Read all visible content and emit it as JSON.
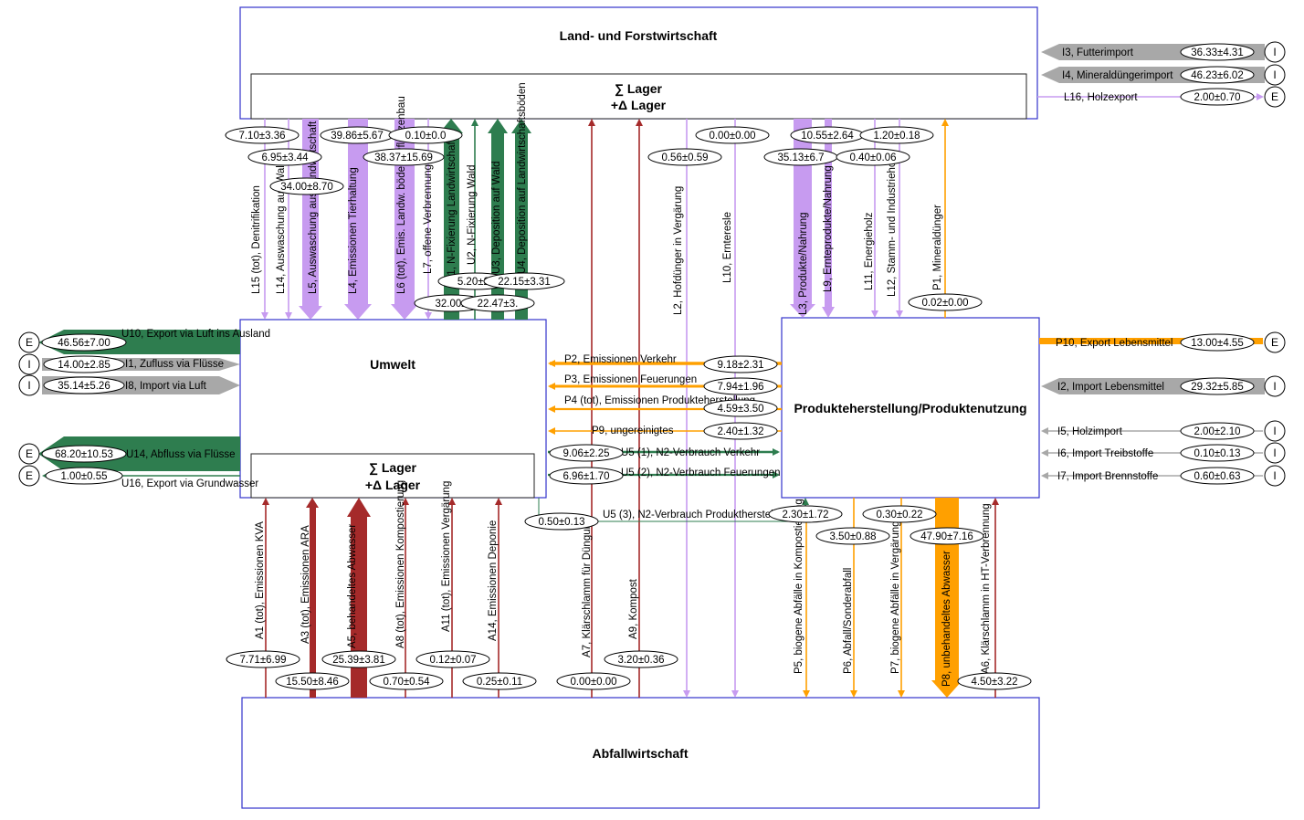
{
  "processes": {
    "land": "Land- und Forstwirtschaft",
    "umwelt": "Umwelt",
    "produkte": "Produkteherstellung/Produktenutzung",
    "abfall": "Abfallwirtschaft",
    "lager_sum": "∑ Lager",
    "lager_delta": "+Δ Lager"
  },
  "colors": {
    "green": "#2e7d4f",
    "purple": "#c79bf0",
    "red": "#a52a2a",
    "orange": "#ffa000",
    "grey": "#a8a8a8",
    "box_border": "#3333cc"
  },
  "markers": {
    "import": "I",
    "export": "E"
  },
  "flows": [
    {
      "id": "L15",
      "label": "L15 (tot), Denitrifikation",
      "value": "7.10±3.36",
      "color": "purple",
      "kind": "thin"
    },
    {
      "id": "L14",
      "label": "L14, Auswaschung aus Wald",
      "value": "6.95±3.44",
      "color": "purple",
      "kind": "thin"
    },
    {
      "id": "L5",
      "label": "L5, Auswaschung aus Landwirtschaft",
      "value": "34.00±8.70",
      "color": "purple",
      "kind": "thick"
    },
    {
      "id": "L4",
      "label": "L4, Emissionen Tierhaltung",
      "value": "39.86±5.67",
      "color": "purple",
      "kind": "thick"
    },
    {
      "id": "L6",
      "label": "L6 (tot), Emis. Landw. böden, Pflanzenbau",
      "value": "38.37±15.69",
      "color": "purple",
      "kind": "thick"
    },
    {
      "id": "L7",
      "label": "L7, offene Verbrennung",
      "value": "0.10±0.0",
      "color": "purple",
      "kind": "thin"
    },
    {
      "id": "U1",
      "label": "U1, N-Fixierung Landwirtschaft",
      "value": "32.00±",
      "color": "green",
      "kind": "thick"
    },
    {
      "id": "U2",
      "label": "U2, N-Fixierung Wald",
      "value": "5.20±2.",
      "color": "green",
      "kind": "thin"
    },
    {
      "id": "U3",
      "label": "U3, Deposition auf Wald",
      "value": "22.47±3.",
      "color": "green",
      "kind": "thick"
    },
    {
      "id": "U4",
      "label": "U4, Deposition auf Landwirtschaftsböden",
      "value": "22.15±3.31",
      "color": "green",
      "kind": "thick"
    },
    {
      "id": "L2",
      "label": "L2, Hofdünger in Vergärung",
      "value": "0.56±0.59",
      "color": "purple",
      "kind": "thin"
    },
    {
      "id": "L10",
      "label": "L10, Ernteresle",
      "value": "0.00±0.00",
      "color": "purple",
      "kind": "thin"
    },
    {
      "id": "L3",
      "label": "L3, Produkte/Nahrung",
      "value": "35.13±6.7",
      "color": "purple",
      "kind": "thick"
    },
    {
      "id": "L9",
      "label": "L9, Ernteprodukte/Nahrung",
      "value": "10.55±2.64",
      "color": "purple",
      "kind": "thick"
    },
    {
      "id": "L11",
      "label": "L11, Energieholz",
      "value": "1.20±0.18",
      "color": "purple",
      "kind": "thin"
    },
    {
      "id": "L12",
      "label": "L12, Stamm- und Industrieholz",
      "value": "0.40±0.06",
      "color": "purple",
      "kind": "thin"
    },
    {
      "id": "P1",
      "label": "P1, Mineraldünger",
      "value": "0.02±0.00",
      "color": "orange",
      "kind": "thin"
    },
    {
      "id": "I3",
      "label": "I3, Futterimport",
      "value": "36.33±4.31",
      "color": "grey",
      "kind": "import"
    },
    {
      "id": "I4",
      "label": "I4, Mineraldüngerimport",
      "value": "46.23±6.02",
      "color": "grey",
      "kind": "import"
    },
    {
      "id": "L16",
      "label": "L16, Holzexport",
      "value": "2.00±0.70",
      "color": "purple",
      "kind": "export"
    },
    {
      "id": "U10",
      "label": "U10, Export via Luft ins Ausland",
      "value": "46.56±7.00",
      "color": "green",
      "kind": "export"
    },
    {
      "id": "I1",
      "label": "I1, Zufluss via Flüsse",
      "value": "14.00±2.85",
      "color": "grey",
      "kind": "import"
    },
    {
      "id": "I8",
      "label": "I8, Import via Luft",
      "value": "35.14±5.26",
      "color": "grey",
      "kind": "import"
    },
    {
      "id": "U14",
      "label": "U14, Abfluss via Flüsse",
      "value": "68.20±10.53",
      "color": "green",
      "kind": "export"
    },
    {
      "id": "U16",
      "label": "U16, Export via Grundwasser",
      "value": "1.00±0.55",
      "color": "green",
      "kind": "export"
    },
    {
      "id": "P2",
      "label": "P2, Emissionen Verkehr",
      "value": "9.18±2.31",
      "color": "orange",
      "kind": "thin"
    },
    {
      "id": "P3",
      "label": "P3, Emissionen Feuerungen",
      "value": "7.94±1.96",
      "color": "orange",
      "kind": "thin"
    },
    {
      "id": "P4",
      "label": "P4 (tot), Emissionen Produkteherstellung",
      "value": "4.59±3.50",
      "color": "orange",
      "kind": "thin"
    },
    {
      "id": "P9",
      "label": "P9, ungereinigtes",
      "value": "2.40±1.32",
      "color": "orange",
      "kind": "thin"
    },
    {
      "id": "U5a",
      "label": "U5 (1), N2-Verbrauch Verkehr",
      "value": "9.06±2.25",
      "color": "green",
      "kind": "thin"
    },
    {
      "id": "U5b",
      "label": "U5 (2), N2-Verbrauch Feuerungen",
      "value": "6.96±1.70",
      "color": "green",
      "kind": "thin"
    },
    {
      "id": "U5c",
      "label": "U5 (3), N2-Verbrauch Produktherstellung etc.",
      "value": "0.50±0.13",
      "color": "green",
      "kind": "thin"
    },
    {
      "id": "P10",
      "label": "P10, Export Lebensmittel",
      "value": "13.00±4.55",
      "color": "orange",
      "kind": "export"
    },
    {
      "id": "I2",
      "label": "I2, Import Lebensmittel",
      "value": "29.32±5.85",
      "color": "grey",
      "kind": "import"
    },
    {
      "id": "I5",
      "label": "I5, Holzimport",
      "value": "2.00±2.10",
      "color": "grey",
      "kind": "import"
    },
    {
      "id": "I6",
      "label": "I6, Import Treibstoffe",
      "value": "0.10±0.13",
      "color": "grey",
      "kind": "import"
    },
    {
      "id": "I7",
      "label": "I7, Import Brennstoffe",
      "value": "0.60±0.63",
      "color": "grey",
      "kind": "import"
    },
    {
      "id": "A1",
      "label": "A1 (tot), Emissionen KVA",
      "value": "7.71±6.99",
      "color": "red",
      "kind": "thin"
    },
    {
      "id": "A3",
      "label": "A3 (tot), Emissionen ARA",
      "value": "15.50±8.46",
      "color": "red",
      "kind": "thin"
    },
    {
      "id": "A5",
      "label": "A5, behandeltes Abwasser",
      "value": "25.39±3.81",
      "color": "red",
      "kind": "thick"
    },
    {
      "id": "A8",
      "label": "A8 (tot), Emissionen Kompostierung",
      "value": "0.70±0.54",
      "color": "red",
      "kind": "thin"
    },
    {
      "id": "A11",
      "label": "A11 (tot), Emissionen Vergärung",
      "value": "0.12±0.07",
      "color": "red",
      "kind": "thin"
    },
    {
      "id": "A14",
      "label": "A14, Emissionen Deponie",
      "value": "0.25±0.11",
      "color": "red",
      "kind": "thin"
    },
    {
      "id": "A7",
      "label": "A7, Klärschlamm für Düngung",
      "value": "0.00±0.00",
      "color": "red",
      "kind": "thin"
    },
    {
      "id": "A9",
      "label": "A9, Kompost",
      "value": "3.20±0.36",
      "color": "red",
      "kind": "thin"
    },
    {
      "id": "U5x",
      "label": "",
      "value": "2.30±1.72",
      "color": "green",
      "kind": "thin"
    },
    {
      "id": "P5",
      "label": "P5, biogene Abfälle in Kompostierung",
      "value": "3.50±0.88",
      "color": "orange",
      "kind": "thin"
    },
    {
      "id": "P6",
      "label": "P6, Abfall/Sonderabfall",
      "value": "0.30±0.22",
      "color": "orange",
      "kind": "thin"
    },
    {
      "id": "P7",
      "label": "P7, biogene Abfälle in Vergärung",
      "value": "",
      "color": "orange",
      "kind": "thin"
    },
    {
      "id": "P8",
      "label": "P8, unbehandeltes Abwasser",
      "value": "47.90±7.16",
      "color": "orange",
      "kind": "thick"
    },
    {
      "id": "A6",
      "label": "A6, Klärschlamm in HT-Verbrennung",
      "value": "4.50±3.22",
      "color": "red",
      "kind": "thin"
    }
  ]
}
